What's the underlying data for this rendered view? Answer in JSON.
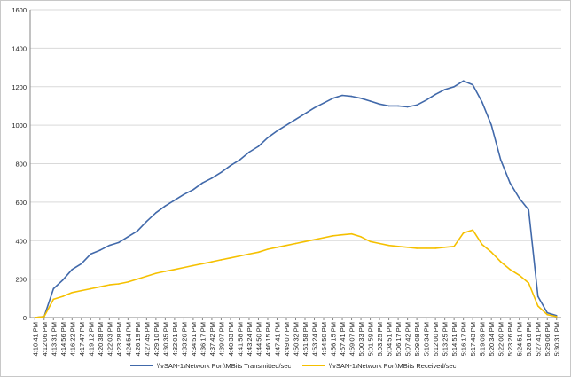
{
  "chart_data": {
    "type": "line",
    "title": "",
    "xlabel": "",
    "ylabel": "",
    "ylim": [
      0,
      1600
    ],
    "yticks": [
      0,
      200,
      400,
      600,
      800,
      1000,
      1200,
      1400,
      1600
    ],
    "grid": true,
    "legend_position": "bottom",
    "colors": {
      "transmitted": "#4169aa",
      "received": "#f5c000",
      "grid": "#d9d9d9",
      "axis": "#868686"
    },
    "x_tick_labels": [
      "4:10:41 PM",
      "4:12:06 PM",
      "4:13:31 PM",
      "4:14:56 PM",
      "4:16:22 PM",
      "4:17:47 PM",
      "4:19:12 PM",
      "4:20:38 PM",
      "4:22:03 PM",
      "4:23:28 PM",
      "4:24:54 PM",
      "4:26:19 PM",
      "4:27:45 PM",
      "4:29:10 PM",
      "4:30:35 PM",
      "4:32:01 PM",
      "4:33:26 PM",
      "4:34:51 PM",
      "4:36:17 PM",
      "4:37:42 PM",
      "4:39:07 PM",
      "4:40:33 PM",
      "4:41:58 PM",
      "4:43:24 PM",
      "4:44:50 PM",
      "4:46:15 PM",
      "4:47:41 PM",
      "4:49:07 PM",
      "4:50:32 PM",
      "4:51:58 PM",
      "4:53:24 PM",
      "4:54:50 PM",
      "4:56:15 PM",
      "4:57:41 PM",
      "4:59:07 PM",
      "5:00:33 PM",
      "5:01:59 PM",
      "5:03:25 PM",
      "5:04:51 PM",
      "5:06:17 PM",
      "5:07:42 PM",
      "5:09:08 PM",
      "5:10:34 PM",
      "5:12:00 PM",
      "5:13:25 PM",
      "5:14:51 PM",
      "5:16:17 PM",
      "5:17:43 PM",
      "5:19:09 PM",
      "5:20:34 PM",
      "5:22:00 PM",
      "5:23:26 PM",
      "5:24:51 PM",
      "5:26:16 PM",
      "5:27:41 PM",
      "5:29:06 PM",
      "5:30:31 PM"
    ],
    "series": [
      {
        "name": "\\\\vSAN-1\\Network Port\\MBits Transmitted/sec",
        "key": "transmitted",
        "values": [
          0,
          5,
          150,
          195,
          250,
          280,
          330,
          350,
          375,
          390,
          420,
          450,
          500,
          545,
          580,
          610,
          640,
          665,
          700,
          725,
          755,
          790,
          820,
          860,
          890,
          935,
          970,
          1000,
          1030,
          1060,
          1090,
          1115,
          1140,
          1155,
          1150,
          1140,
          1125,
          1110,
          1100,
          1100,
          1095,
          1105,
          1130,
          1160,
          1185,
          1200,
          1230,
          1210,
          1120,
          1000,
          820,
          700,
          620,
          560,
          110,
          25,
          10
        ]
      },
      {
        "name": "\\\\vSAN-1\\Network Port\\MBits Received/sec",
        "key": "received",
        "values": [
          0,
          5,
          95,
          110,
          130,
          140,
          150,
          160,
          170,
          175,
          185,
          200,
          215,
          230,
          240,
          250,
          260,
          270,
          280,
          290,
          300,
          310,
          320,
          330,
          340,
          355,
          365,
          375,
          385,
          395,
          405,
          415,
          425,
          430,
          435,
          420,
          395,
          385,
          375,
          370,
          365,
          360,
          360,
          360,
          365,
          370,
          440,
          455,
          380,
          340,
          290,
          250,
          220,
          180,
          60,
          15,
          5
        ]
      }
    ]
  }
}
